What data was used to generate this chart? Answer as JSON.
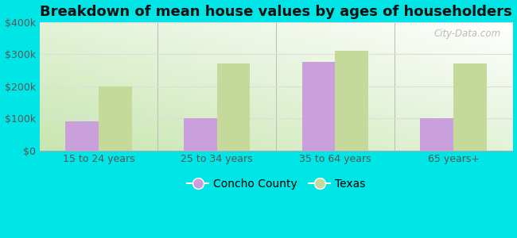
{
  "title": "Breakdown of mean house values by ages of householders",
  "categories": [
    "15 to 24 years",
    "25 to 34 years",
    "35 to 64 years",
    "65 years+"
  ],
  "concho_values": [
    90000,
    100000,
    275000,
    100000
  ],
  "texas_values": [
    200000,
    270000,
    310000,
    270000
  ],
  "concho_color": "#c9a0dc",
  "texas_color": "#c5d99a",
  "background_color": "#00e5e5",
  "ylim": [
    0,
    400000
  ],
  "yticks": [
    0,
    100000,
    200000,
    300000,
    400000
  ],
  "ytick_labels": [
    "$0",
    "$100k",
    "$200k",
    "$300k",
    "$400k"
  ],
  "legend_labels": [
    "Concho County",
    "Texas"
  ],
  "title_fontsize": 13,
  "tick_fontsize": 9,
  "legend_fontsize": 10,
  "bar_width": 0.28,
  "watermark_text": "City-Data.com",
  "grid_color": "#dddddd",
  "divider_color": "#bbbbbb"
}
